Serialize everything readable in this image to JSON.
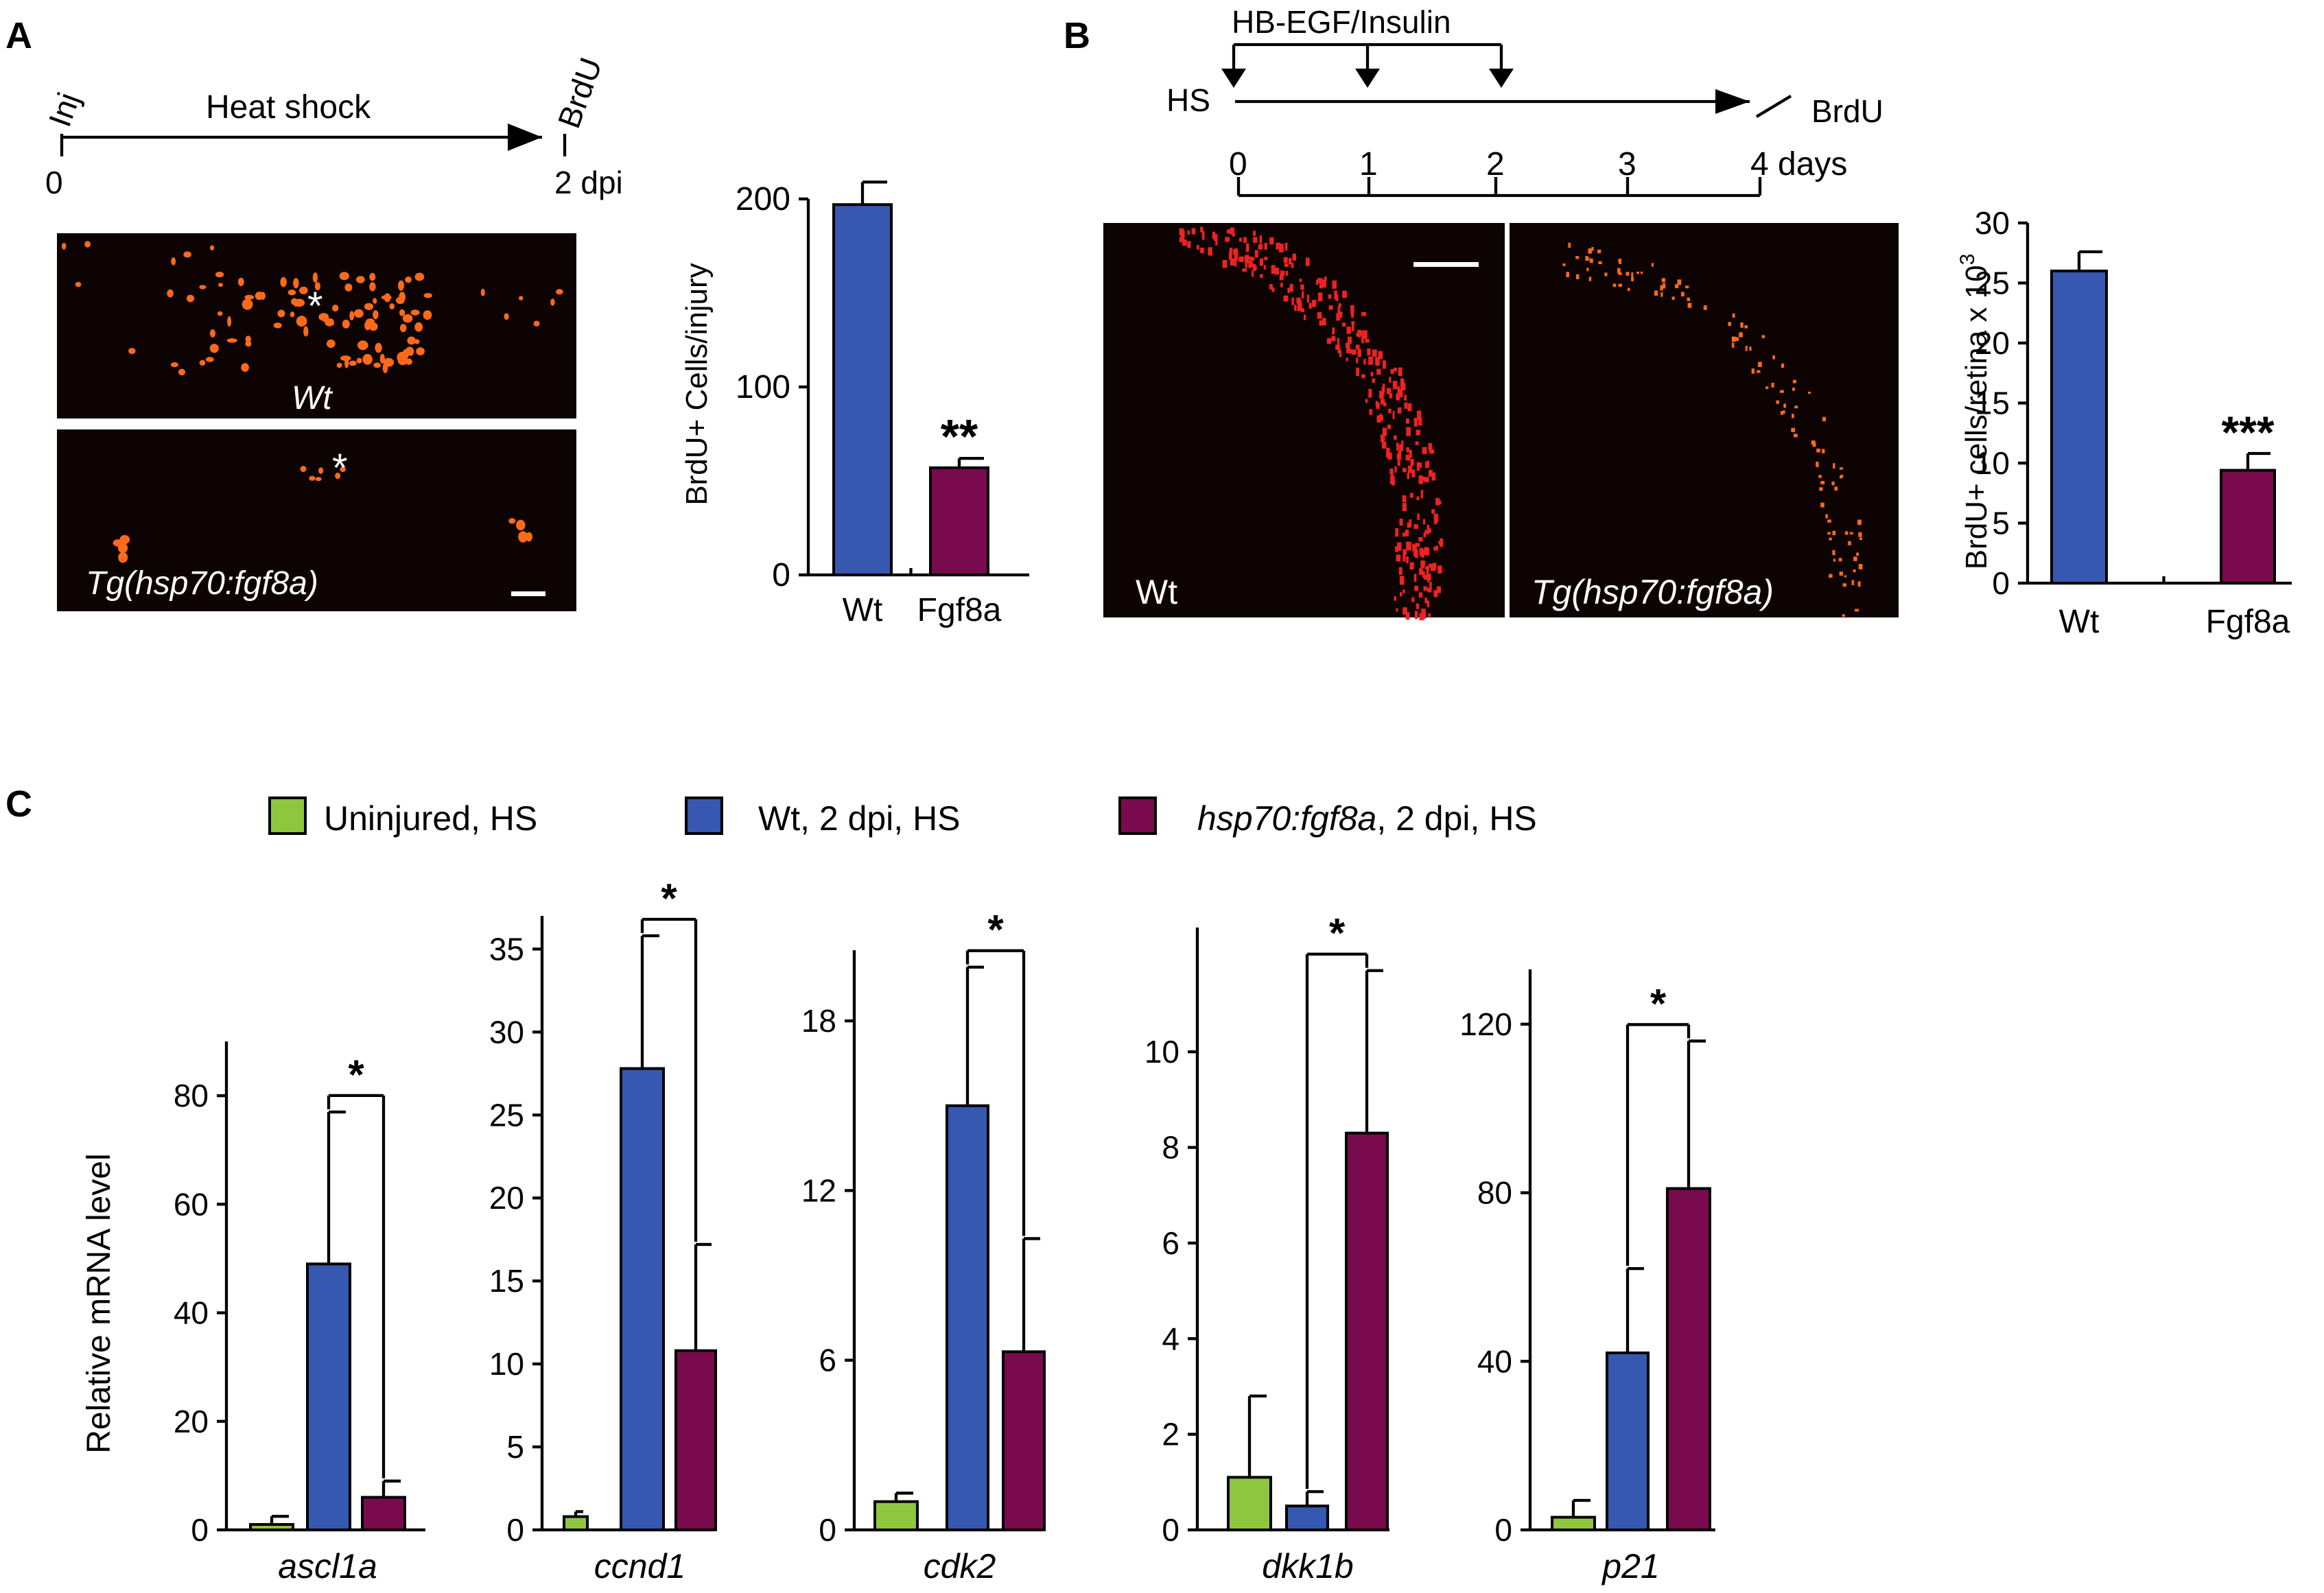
{
  "panel_labels": [
    "A",
    "B",
    "C"
  ],
  "colors": {
    "green": "#8fc63f",
    "blue": "#3658b0",
    "maroon": "#7a0a4e",
    "micro_signal": "#ff6a1a",
    "micro_signal_b": "#ee2222"
  },
  "panelA": {
    "timeline": {
      "start_label": "Inj",
      "middle_label": "Heat shock",
      "end_label": "BrdU",
      "tick_start": "0",
      "tick_end": "2 dpi"
    },
    "micro_wt": {
      "label": "Wt",
      "marker": "*"
    },
    "micro_tg": {
      "label": "Tg(hsp70:fgf8a)",
      "marker": "*"
    }
  },
  "panelB": {
    "timeline": {
      "treatment_label": "HB-EGF/Insulin",
      "hs_label": "HS",
      "brdu_label": "BrdU",
      "ticks": [
        "0",
        "1",
        "2",
        "3",
        "4 days"
      ]
    },
    "micro_wt": {
      "label": "Wt"
    },
    "micro_tg": {
      "label": "Tg(hsp70:fgf8a)"
    }
  },
  "panelC": {
    "legend": [
      {
        "label": "Uninjured, HS",
        "italic_part": "",
        "color": "green"
      },
      {
        "label": "Wt, 2 dpi, HS",
        "italic_part": "",
        "color": "blue"
      },
      {
        "label": ", 2 dpi, HS",
        "italic_part": "hsp70:fgf8a",
        "color": "maroon"
      }
    ]
  },
  "chart_data": [
    {
      "panel": "A",
      "type": "bar",
      "categories": [
        "Wt",
        "Fgf8a"
      ],
      "values": [
        197,
        57
      ],
      "errors": [
        12,
        5
      ],
      "colors": [
        "blue",
        "maroon"
      ],
      "significance": [
        "",
        "**"
      ],
      "ylabel": "BrdU+ Cells/injury",
      "ylim": [
        0,
        200
      ],
      "yticks": [
        "0",
        "100",
        "200"
      ],
      "ytick_values": [
        0,
        100,
        200
      ]
    },
    {
      "panel": "B",
      "type": "bar",
      "categories": [
        "Wt",
        "Fgf8a"
      ],
      "values": [
        26,
        9.4
      ],
      "errors": [
        1.6,
        1.4
      ],
      "colors": [
        "blue",
        "maroon"
      ],
      "significance": [
        "",
        "***"
      ],
      "ylabel": "BrdU+ cells/retina x 10",
      "ylabel_superscript": "3",
      "ylim": [
        0,
        30
      ],
      "yticks": [
        "0",
        "5",
        "10",
        "15",
        "20",
        "25",
        "30"
      ],
      "ytick_values": [
        0,
        5,
        10,
        15,
        20,
        25,
        30
      ]
    },
    {
      "panel": "C",
      "type": "bar",
      "gene": "ascl1a",
      "ylabel": "Relative mRNA level",
      "series": [
        {
          "color": "green",
          "value": 1,
          "error": 1.5
        },
        {
          "color": "blue",
          "value": 49,
          "error": 28
        },
        {
          "color": "maroon",
          "value": 6,
          "error": 3
        }
      ],
      "significance": "*",
      "bracket": [
        1,
        2
      ],
      "ylim": [
        0,
        90
      ],
      "yticks": [
        "0",
        "20",
        "40",
        "60",
        "80"
      ],
      "ytick_values": [
        0,
        20,
        40,
        60,
        80
      ]
    },
    {
      "panel": "C",
      "type": "bar",
      "gene": "ccnd1",
      "ylabel": "",
      "series": [
        {
          "color": "green",
          "value": 0.8,
          "error": 0.3
        },
        {
          "color": "blue",
          "value": 27.8,
          "error": 8
        },
        {
          "color": "maroon",
          "value": 10.8,
          "error": 6.4
        }
      ],
      "significance": "*",
      "bracket": [
        1,
        2
      ],
      "ylim": [
        0,
        37
      ],
      "yticks": [
        "0",
        "5",
        "10",
        "15",
        "20",
        "25",
        "30",
        "35"
      ],
      "ytick_values": [
        0,
        5,
        10,
        15,
        20,
        25,
        30,
        35
      ]
    },
    {
      "panel": "C",
      "type": "bar",
      "gene": "cdk2",
      "ylabel": "",
      "series": [
        {
          "color": "green",
          "value": 1,
          "error": 0.3
        },
        {
          "color": "blue",
          "value": 15,
          "error": 4.9
        },
        {
          "color": "maroon",
          "value": 6.3,
          "error": 4
        }
      ],
      "significance": "*",
      "bracket": [
        1,
        2
      ],
      "ylim": [
        0,
        20.5
      ],
      "yticks": [
        "0",
        "6",
        "12",
        "18"
      ],
      "ytick_values": [
        0,
        6,
        12,
        18
      ]
    },
    {
      "panel": "C",
      "type": "bar",
      "gene": "dkk1b",
      "ylabel": "",
      "series": [
        {
          "color": "green",
          "value": 1.1,
          "error": 1.7
        },
        {
          "color": "blue",
          "value": 0.5,
          "error": 0.3
        },
        {
          "color": "maroon",
          "value": 8.3,
          "error": 3.4
        }
      ],
      "significance": "*",
      "bracket": [
        1,
        2
      ],
      "ylim": [
        0,
        12.6
      ],
      "yticks": [
        "0",
        "2",
        "4",
        "6",
        "8",
        "10"
      ],
      "ytick_values": [
        0,
        2,
        4,
        6,
        8,
        10
      ]
    },
    {
      "panel": "C",
      "type": "bar",
      "gene": "p21",
      "ylabel": "",
      "series": [
        {
          "color": "green",
          "value": 3,
          "error": 4
        },
        {
          "color": "blue",
          "value": 42,
          "error": 20
        },
        {
          "color": "maroon",
          "value": 81,
          "error": 35
        }
      ],
      "significance": "*",
      "bracket": [
        1,
        2
      ],
      "ylim": [
        0,
        133
      ],
      "yticks": [
        "0",
        "40",
        "80",
        "120"
      ],
      "ytick_values": [
        0,
        40,
        80,
        120
      ]
    }
  ]
}
